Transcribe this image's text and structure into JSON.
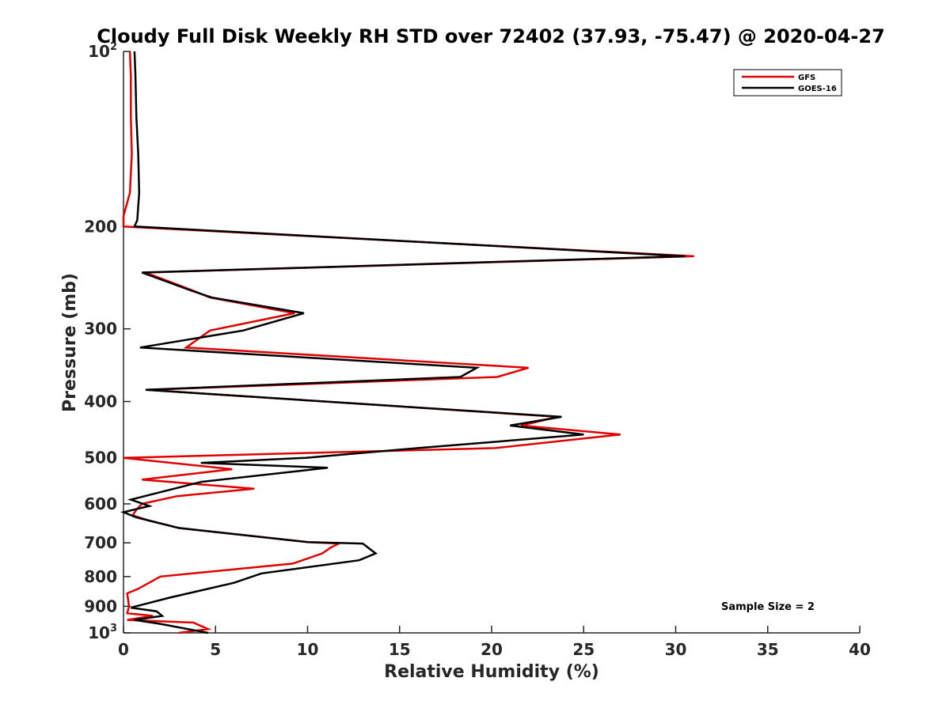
{
  "chart_data": {
    "type": "line",
    "title": "Cloudy Full Disk Weekly RH STD over 72402 (37.93, -75.47) @ 2020-04-27",
    "xlabel": "Relative Humidity (%)",
    "ylabel": "Pressure (mb)",
    "xlim": [
      0,
      40
    ],
    "ylim": [
      100,
      1000
    ],
    "yscale": "log",
    "y_reversed": true,
    "x_ticks": [
      "0",
      "5",
      "10",
      "15",
      "20",
      "25",
      "30",
      "35",
      "40"
    ],
    "y_ticks": [
      {
        "value": 100,
        "label": "10",
        "exp": "2"
      },
      {
        "value": 200,
        "label": "200",
        "exp": ""
      },
      {
        "value": 300,
        "label": "300",
        "exp": ""
      },
      {
        "value": 400,
        "label": "400",
        "exp": ""
      },
      {
        "value": 500,
        "label": "500",
        "exp": ""
      },
      {
        "value": 600,
        "label": "600",
        "exp": ""
      },
      {
        "value": 700,
        "label": "700",
        "exp": ""
      },
      {
        "value": 800,
        "label": "800",
        "exp": ""
      },
      {
        "value": 900,
        "label": "900",
        "exp": ""
      },
      {
        "value": 1000,
        "label": "10",
        "exp": "3"
      }
    ],
    "grid": false,
    "legend_position": "top-right",
    "annotation": "Sample Size = 2",
    "series": [
      {
        "name": "GFS",
        "color": "#e00000",
        "x": [
          0.35,
          0.4,
          0.4,
          0.45,
          0.35,
          0.0,
          0.0,
          31.0,
          1.2,
          3.8,
          4.7,
          9.3,
          4.7,
          3.4,
          22.0,
          20.3,
          1.3,
          23.6,
          21.6,
          27.0,
          20.2,
          0.0,
          5.9,
          1.0,
          7.1,
          2.9,
          1.0,
          0.7,
          0.5,
          1.3,
          3.0,
          10.0,
          11.7,
          11.3,
          10.8,
          9.2,
          2.0,
          0.8,
          0.2,
          0.3,
          0.2,
          1.6,
          0.2,
          3.8,
          4.6,
          3.0
        ],
        "y": [
          100,
          110,
          130,
          150,
          175,
          192,
          200,
          225,
          240,
          258,
          265,
          282,
          302,
          323,
          350,
          363,
          382,
          425,
          440,
          456,
          481,
          500,
          523,
          545,
          565,
          582,
          600,
          614,
          628,
          640,
          660,
          698,
          702,
          712,
          730,
          760,
          800,
          840,
          855,
          900,
          925,
          935,
          950,
          960,
          985,
          1000
        ]
      },
      {
        "name": "GOES-16",
        "color": "#000000",
        "x": [
          0.6,
          0.65,
          0.7,
          0.8,
          0.85,
          0.75,
          0.6,
          30.5,
          1.0,
          3.7,
          4.8,
          9.8,
          6.5,
          0.9,
          19.2,
          18.3,
          1.2,
          23.8,
          21.0,
          25.0,
          16.0,
          9.9,
          4.2,
          11.1,
          4.2,
          0.4,
          1.4,
          0.0,
          0.7,
          3.0,
          10.0,
          13.0,
          13.7,
          12.8,
          7.5,
          6.0,
          2.5,
          0.4,
          1.8,
          2.1,
          0.6,
          2.0,
          4.6
        ],
        "y": [
          100,
          110,
          130,
          150,
          175,
          195,
          200,
          225,
          240,
          258,
          265,
          282,
          302,
          323,
          350,
          363,
          382,
          425,
          440,
          456,
          481,
          500,
          510,
          520,
          550,
          590,
          605,
          620,
          633,
          660,
          698,
          702,
          730,
          750,
          790,
          820,
          870,
          905,
          918,
          935,
          950,
          965,
          1000
        ]
      }
    ]
  }
}
